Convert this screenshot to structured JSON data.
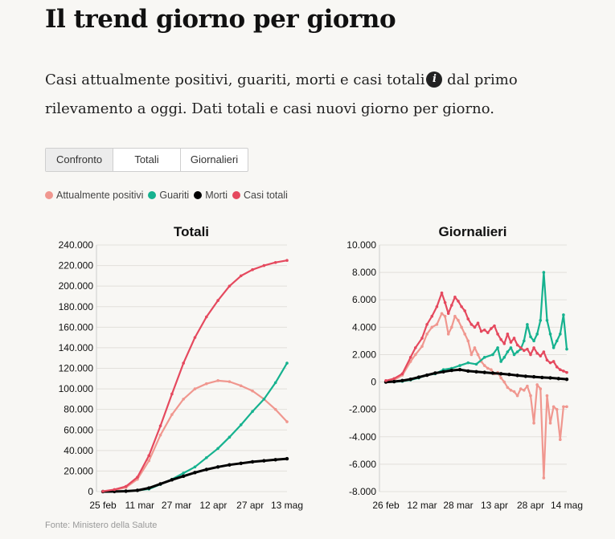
{
  "page": {
    "title": "Il trend giorno per giorno",
    "intro_part1": "Casi attualmente positivi, guariti, morti e casi totali",
    "intro_part2": " dal primo rilevamento a oggi. Dati totali e casi nuovi giorno per giorno.",
    "info_icon": "info-icon",
    "source": "Fonte: Ministero della Salute"
  },
  "tabs": [
    {
      "label": "Confronto",
      "active": true
    },
    {
      "label": "Totali",
      "active": false
    },
    {
      "label": "Giornalieri",
      "active": false
    }
  ],
  "legend": [
    {
      "label": "Attualmente positivi",
      "color": "#f0978f"
    },
    {
      "label": "Guariti",
      "color": "#16b28f"
    },
    {
      "label": "Morti",
      "color": "#000000"
    },
    {
      "label": "Casi totali",
      "color": "#e5495e"
    }
  ],
  "chart_data": [
    {
      "type": "line",
      "title": "Totali",
      "ylim": [
        0,
        240000
      ],
      "yticks": [
        "240.000",
        "220.000",
        "200.000",
        "180.000",
        "160.000",
        "140.000",
        "120.000",
        "100.000",
        "80.000",
        "60.000",
        "40.000",
        "20.000",
        "0"
      ],
      "xticks": [
        "25 feb",
        "11 mar",
        "27 mar",
        "12 apr",
        "27 apr",
        "13 mag"
      ],
      "grid": true,
      "series": [
        {
          "name": "Attualmente positivi",
          "color": "#f0978f",
          "points": [
            [
              0,
              200
            ],
            [
              10,
              1500
            ],
            [
              20,
              4000
            ],
            [
              30,
              12000
            ],
            [
              40,
              30000
            ],
            [
              50,
              55000
            ],
            [
              60,
              75000
            ],
            [
              70,
              90000
            ],
            [
              80,
              100000
            ],
            [
              90,
              105000
            ],
            [
              100,
              108000
            ],
            [
              110,
              107000
            ],
            [
              120,
              103000
            ],
            [
              130,
              98000
            ],
            [
              140,
              90000
            ],
            [
              150,
              80000
            ],
            [
              160,
              68000
            ]
          ]
        },
        {
          "name": "Guariti",
          "color": "#16b28f",
          "points": [
            [
              0,
              0
            ],
            [
              10,
              0
            ],
            [
              20,
              500
            ],
            [
              30,
              1000
            ],
            [
              40,
              2500
            ],
            [
              50,
              7000
            ],
            [
              60,
              12000
            ],
            [
              70,
              18000
            ],
            [
              80,
              24000
            ],
            [
              90,
              33000
            ],
            [
              100,
              42000
            ],
            [
              110,
              53000
            ],
            [
              120,
              65000
            ],
            [
              130,
              78000
            ],
            [
              140,
              90000
            ],
            [
              150,
              106000
            ],
            [
              160,
              125000
            ]
          ]
        },
        {
          "name": "Morti",
          "color": "#000000",
          "points": [
            [
              0,
              0
            ],
            [
              10,
              100
            ],
            [
              20,
              400
            ],
            [
              30,
              1200
            ],
            [
              40,
              3500
            ],
            [
              50,
              7500
            ],
            [
              60,
              11500
            ],
            [
              70,
              15000
            ],
            [
              80,
              18500
            ],
            [
              90,
              21500
            ],
            [
              100,
              24000
            ],
            [
              110,
              26000
            ],
            [
              120,
              27500
            ],
            [
              130,
              29000
            ],
            [
              140,
              30000
            ],
            [
              150,
              31000
            ],
            [
              160,
              32000
            ]
          ]
        },
        {
          "name": "Casi totali",
          "color": "#e5495e",
          "points": [
            [
              0,
              300
            ],
            [
              10,
              2000
            ],
            [
              20,
              5000
            ],
            [
              30,
              14000
            ],
            [
              40,
              35000
            ],
            [
              50,
              64000
            ],
            [
              60,
              95000
            ],
            [
              70,
              125000
            ],
            [
              80,
              150000
            ],
            [
              90,
              170000
            ],
            [
              100,
              186000
            ],
            [
              110,
              200000
            ],
            [
              120,
              210000
            ],
            [
              130,
              216000
            ],
            [
              140,
              220000
            ],
            [
              150,
              223000
            ],
            [
              160,
              225000
            ]
          ]
        }
      ]
    },
    {
      "type": "line",
      "title": "Giornalieri",
      "ylim": [
        -8000,
        10000
      ],
      "yticks": [
        "10.000",
        "8.000",
        "6.000",
        "4.000",
        "2.000",
        "0",
        "-2.000",
        "-4.000",
        "-6.000",
        "-8.000"
      ],
      "xticks": [
        "26 feb",
        "12 mar",
        "28 mar",
        "13 apr",
        "28 apr",
        "14 mag"
      ],
      "grid": true,
      "series": [
        {
          "name": "Attualmente positivi",
          "color": "#f0978f",
          "points": [
            [
              0,
              0
            ],
            [
              5,
              150
            ],
            [
              10,
              500
            ],
            [
              15,
              1500
            ],
            [
              18,
              2000
            ],
            [
              22,
              2600
            ],
            [
              25,
              3500
            ],
            [
              28,
              4000
            ],
            [
              31,
              4200
            ],
            [
              34,
              5000
            ],
            [
              36,
              4800
            ],
            [
              38,
              3500
            ],
            [
              40,
              4000
            ],
            [
              42,
              4800
            ],
            [
              44,
              4500
            ],
            [
              46,
              4000
            ],
            [
              48,
              3500
            ],
            [
              50,
              3000
            ],
            [
              52,
              2000
            ],
            [
              54,
              2500
            ],
            [
              56,
              2000
            ],
            [
              58,
              1500
            ],
            [
              60,
              1200
            ],
            [
              62,
              1000
            ],
            [
              64,
              900
            ],
            [
              66,
              600
            ],
            [
              68,
              700
            ],
            [
              70,
              300
            ],
            [
              72,
              0
            ],
            [
              74,
              -400
            ],
            [
              76,
              -600
            ],
            [
              78,
              -700
            ],
            [
              80,
              -1000
            ],
            [
              82,
              -500
            ],
            [
              84,
              -600
            ],
            [
              86,
              -300
            ],
            [
              88,
              -1000
            ],
            [
              90,
              -3000
            ],
            [
              92,
              -200
            ],
            [
              94,
              -500
            ],
            [
              96,
              -7000
            ],
            [
              98,
              -1000
            ],
            [
              100,
              -3000
            ],
            [
              102,
              -1800
            ],
            [
              104,
              -2000
            ],
            [
              106,
              -4200
            ],
            [
              108,
              -1800
            ],
            [
              110,
              -1800
            ]
          ]
        },
        {
          "name": "Guariti",
          "color": "#16b28f",
          "points": [
            [
              0,
              0
            ],
            [
              5,
              10
            ],
            [
              10,
              50
            ],
            [
              15,
              150
            ],
            [
              20,
              300
            ],
            [
              25,
              500
            ],
            [
              30,
              600
            ],
            [
              35,
              900
            ],
            [
              40,
              1000
            ],
            [
              45,
              1200
            ],
            [
              50,
              1400
            ],
            [
              55,
              1300
            ],
            [
              60,
              1800
            ],
            [
              65,
              2000
            ],
            [
              68,
              2500
            ],
            [
              70,
              1500
            ],
            [
              72,
              1800
            ],
            [
              74,
              2200
            ],
            [
              76,
              2500
            ],
            [
              78,
              2000
            ],
            [
              80,
              2200
            ],
            [
              82,
              2400
            ],
            [
              84,
              3000
            ],
            [
              86,
              4200
            ],
            [
              88,
              3300
            ],
            [
              90,
              3000
            ],
            [
              92,
              3500
            ],
            [
              94,
              4500
            ],
            [
              96,
              8000
            ],
            [
              98,
              4500
            ],
            [
              100,
              3500
            ],
            [
              102,
              2500
            ],
            [
              104,
              3000
            ],
            [
              106,
              3500
            ],
            [
              108,
              4900
            ],
            [
              110,
              2400
            ]
          ]
        },
        {
          "name": "Morti",
          "color": "#000000",
          "points": [
            [
              0,
              0
            ],
            [
              5,
              30
            ],
            [
              10,
              100
            ],
            [
              15,
              200
            ],
            [
              20,
              350
            ],
            [
              25,
              500
            ],
            [
              30,
              650
            ],
            [
              35,
              750
            ],
            [
              40,
              850
            ],
            [
              45,
              900
            ],
            [
              50,
              800
            ],
            [
              55,
              750
            ],
            [
              60,
              700
            ],
            [
              65,
              650
            ],
            [
              70,
              600
            ],
            [
              75,
              550
            ],
            [
              80,
              480
            ],
            [
              85,
              420
            ],
            [
              90,
              380
            ],
            [
              95,
              330
            ],
            [
              100,
              300
            ],
            [
              105,
              250
            ],
            [
              110,
              200
            ]
          ]
        },
        {
          "name": "Casi totali",
          "color": "#e5495e",
          "points": [
            [
              0,
              100
            ],
            [
              5,
              250
            ],
            [
              10,
              600
            ],
            [
              15,
              1800
            ],
            [
              18,
              2500
            ],
            [
              22,
              3200
            ],
            [
              25,
              4200
            ],
            [
              28,
              4800
            ],
            [
              31,
              5500
            ],
            [
              34,
              6500
            ],
            [
              36,
              5800
            ],
            [
              38,
              5000
            ],
            [
              40,
              5600
            ],
            [
              42,
              6200
            ],
            [
              44,
              5900
            ],
            [
              46,
              5500
            ],
            [
              48,
              5200
            ],
            [
              50,
              4600
            ],
            [
              52,
              4200
            ],
            [
              54,
              4000
            ],
            [
              56,
              4300
            ],
            [
              58,
              3700
            ],
            [
              60,
              3800
            ],
            [
              62,
              3600
            ],
            [
              64,
              3900
            ],
            [
              66,
              4100
            ],
            [
              68,
              3500
            ],
            [
              70,
              3100
            ],
            [
              72,
              2800
            ],
            [
              74,
              3500
            ],
            [
              76,
              2900
            ],
            [
              78,
              3200
            ],
            [
              80,
              2700
            ],
            [
              82,
              2500
            ],
            [
              84,
              2300
            ],
            [
              86,
              2400
            ],
            [
              88,
              2000
            ],
            [
              90,
              2500
            ],
            [
              92,
              2100
            ],
            [
              94,
              1900
            ],
            [
              96,
              2200
            ],
            [
              98,
              1600
            ],
            [
              100,
              1400
            ],
            [
              102,
              1500
            ],
            [
              104,
              1100
            ],
            [
              106,
              900
            ],
            [
              108,
              800
            ],
            [
              110,
              700
            ]
          ]
        }
      ]
    }
  ]
}
